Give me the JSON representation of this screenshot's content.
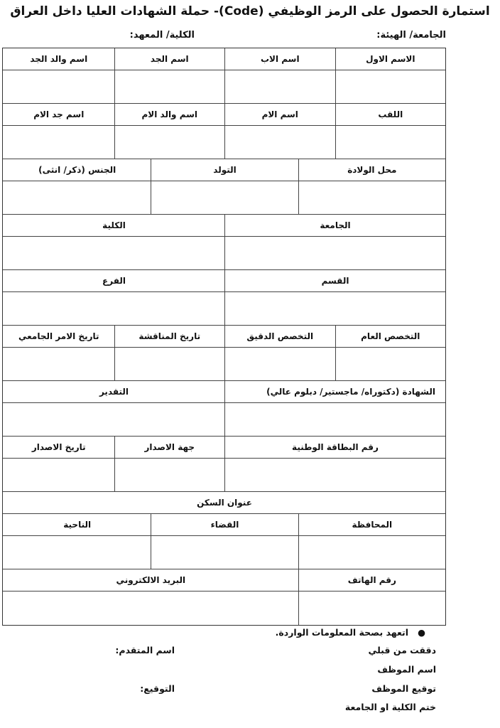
{
  "title": "استمارة الحصول على الرمز الوظيفي (Code)- حملة الشهادات العليا داخل العراق",
  "header": {
    "university": "الجامعة/ الهيئة:",
    "college": "الكلية/ المعهد:"
  },
  "form_rows": [
    [
      "الاسم الاول",
      "اسم الاب",
      "اسم الجد",
      "اسم والد الجد"
    ],
    [
      "اللقب",
      "اسم الام",
      "اسم والد الام",
      "اسم جد الام"
    ],
    [
      "محل الولادة",
      "التولد",
      "الجنس (ذكر/ انثى)"
    ],
    [
      "الجامعة",
      "الكلية"
    ],
    [
      "القسم",
      "الفرع"
    ],
    [
      "التخصص العام",
      "التخصص الدقيق",
      "تاريخ المناقشة",
      "تاريخ الامر الجامعي"
    ],
    [
      "الشهادة (دكتوراه/ ماجستير/ دبلوم عالي)",
      "التقدير"
    ],
    [
      "رقم البطاقة الوطنية",
      "جهة الاصدار",
      "تاريخ الاصدار"
    ],
    [
      "عنوان السكن"
    ],
    [
      "المحافظة",
      "القضاء",
      "الناحية"
    ],
    [
      "رقم الهاتف",
      "البريد الالكتروني"
    ]
  ],
  "footer": {
    "pledge": "اتعهد بصحة المعلومات الواردة.",
    "checked_by": "دققت من قبلي",
    "applicant_name": "اسم المتقدم:",
    "employee_name": "اسم الموظف",
    "employee_signature": "توقيع الموظف",
    "signature": "التوقيع:",
    "stamp": "ختم الكلية او الجامعة"
  }
}
